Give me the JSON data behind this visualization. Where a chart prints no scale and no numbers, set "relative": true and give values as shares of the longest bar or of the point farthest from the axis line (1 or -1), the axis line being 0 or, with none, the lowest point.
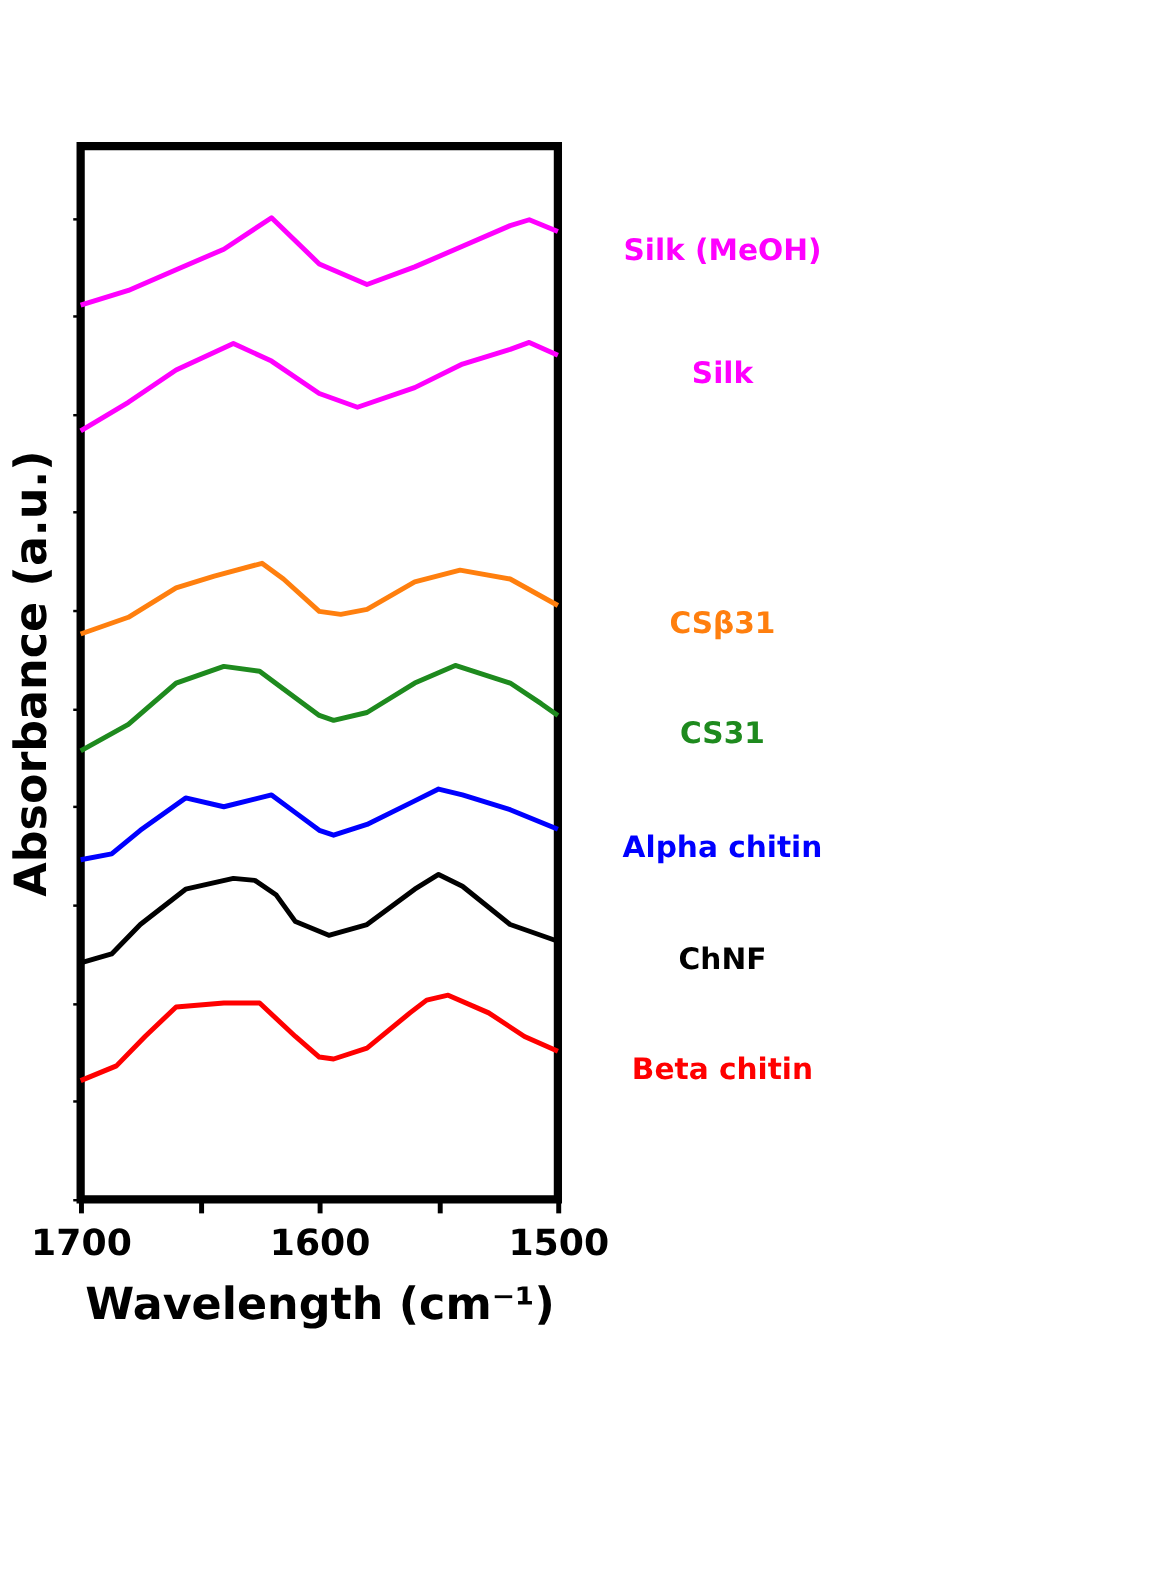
{
  "chart_data": {
    "type": "line",
    "relative": true,
    "xlabel": "Wavelength (cm⁻¹)",
    "ylabel": "Absorbance (a.u.)",
    "xlim": [
      1700,
      1500
    ],
    "xticks": [
      1700,
      {
        "value": 1650,
        "label": null
      },
      1600,
      {
        "value": 1550,
        "label": null
      },
      1500
    ],
    "grid": false,
    "legend": false,
    "tick_labels": "x",
    "marker": "none",
    "line_style": "solid",
    "series": [
      {
        "name": "Silk (MeOH)",
        "color": "#ff00ff",
        "x": [
          1700,
          1680,
          1660,
          1640,
          1620,
          1600,
          1580,
          1560,
          1540,
          1520,
          1512,
          1500
        ],
        "values": [
          0.911,
          0.926,
          0.947,
          0.968,
          1.0,
          0.953,
          0.932,
          0.95,
          0.971,
          0.992,
          0.998,
          0.986
        ]
      },
      {
        "name": "Silk",
        "color": "#ff00ff",
        "x": [
          1700,
          1680,
          1660,
          1636,
          1620,
          1600,
          1584,
          1560,
          1540,
          1520,
          1512,
          1500
        ],
        "values": [
          0.783,
          0.812,
          0.845,
          0.872,
          0.854,
          0.821,
          0.807,
          0.827,
          0.851,
          0.866,
          0.873,
          0.86
        ]
      },
      {
        "name": "CSβ31",
        "color": "#ff7f0e",
        "x": [
          1700,
          1680,
          1660,
          1644,
          1624,
          1615,
          1600,
          1591,
          1580,
          1560,
          1541,
          1520,
          1500
        ],
        "values": [
          0.576,
          0.593,
          0.623,
          0.635,
          0.648,
          0.632,
          0.599,
          0.596,
          0.601,
          0.629,
          0.641,
          0.632,
          0.605
        ]
      },
      {
        "name": "CS31",
        "color": "#1e8a1e",
        "x": [
          1700,
          1680,
          1660,
          1640,
          1625,
          1615,
          1600,
          1594,
          1580,
          1560,
          1543,
          1520,
          1507,
          1500
        ],
        "values": [
          0.457,
          0.484,
          0.526,
          0.543,
          0.538,
          0.52,
          0.493,
          0.488,
          0.496,
          0.526,
          0.544,
          0.526,
          0.505,
          0.493
        ]
      },
      {
        "name": "Alpha chitin",
        "color": "#0000ff",
        "x": [
          1700,
          1687,
          1675,
          1656,
          1640,
          1620,
          1610,
          1600,
          1594,
          1580,
          1560,
          1550,
          1540,
          1520,
          1500
        ],
        "values": [
          0.346,
          0.352,
          0.376,
          0.409,
          0.4,
          0.412,
          0.394,
          0.376,
          0.371,
          0.382,
          0.406,
          0.418,
          0.412,
          0.397,
          0.377
        ]
      },
      {
        "name": "ChNF",
        "color": "#000000",
        "x": [
          1700,
          1687,
          1675,
          1656,
          1636,
          1627,
          1618,
          1610,
          1596,
          1580,
          1560,
          1550,
          1540,
          1520,
          1500
        ],
        "values": [
          0.241,
          0.25,
          0.28,
          0.316,
          0.327,
          0.325,
          0.31,
          0.283,
          0.269,
          0.28,
          0.316,
          0.331,
          0.319,
          0.28,
          0.263
        ]
      },
      {
        "name": "Beta chitin",
        "color": "#ff0000",
        "x": [
          1700,
          1685,
          1673,
          1660,
          1640,
          1625,
          1610,
          1600,
          1594,
          1580,
          1562,
          1555,
          1546,
          1529,
          1514,
          1500
        ],
        "values": [
          0.121,
          0.136,
          0.166,
          0.196,
          0.2,
          0.2,
          0.166,
          0.145,
          0.143,
          0.154,
          0.19,
          0.203,
          0.208,
          0.19,
          0.166,
          0.151
        ]
      }
    ]
  }
}
